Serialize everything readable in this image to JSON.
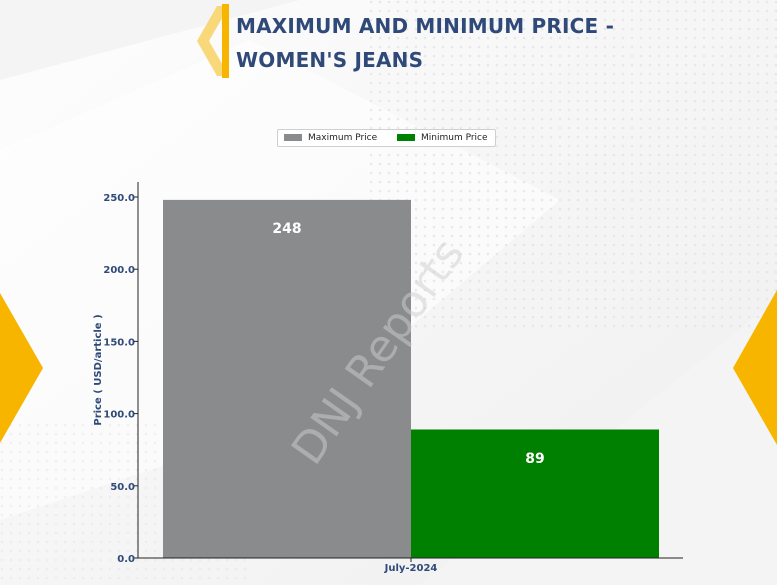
{
  "title": {
    "line1": "MAXIMUM AND MINIMUM PRICE -",
    "line2": "WOMEN'S JEANS"
  },
  "watermark": "DNJ Reports",
  "colors": {
    "title": "#2f4a78",
    "accent": "#f7b500",
    "accent_light": "#f9d87a",
    "max_bar": "#8a8b8d",
    "min_bar": "#008000",
    "axis_text": "#2f4a78"
  },
  "chart_data": {
    "type": "bar",
    "categories": [
      "July-2024"
    ],
    "series": [
      {
        "name": "Maximum Price",
        "values": [
          248
        ],
        "color": "#8a8b8d"
      },
      {
        "name": "Minimum Price",
        "values": [
          89
        ],
        "color": "#008000"
      }
    ],
    "data_labels": [
      "248",
      "89"
    ],
    "xlabel": "",
    "ylabel": "Price ( USD/article )",
    "ylim": [
      0,
      260
    ],
    "yticks": [
      0,
      50,
      100,
      150,
      200,
      250
    ],
    "ytick_labels": [
      "0.0",
      "50.0",
      "100.0",
      "150.0",
      "200.0",
      "250.0"
    ],
    "legend_position": "top-center",
    "grid": false
  }
}
